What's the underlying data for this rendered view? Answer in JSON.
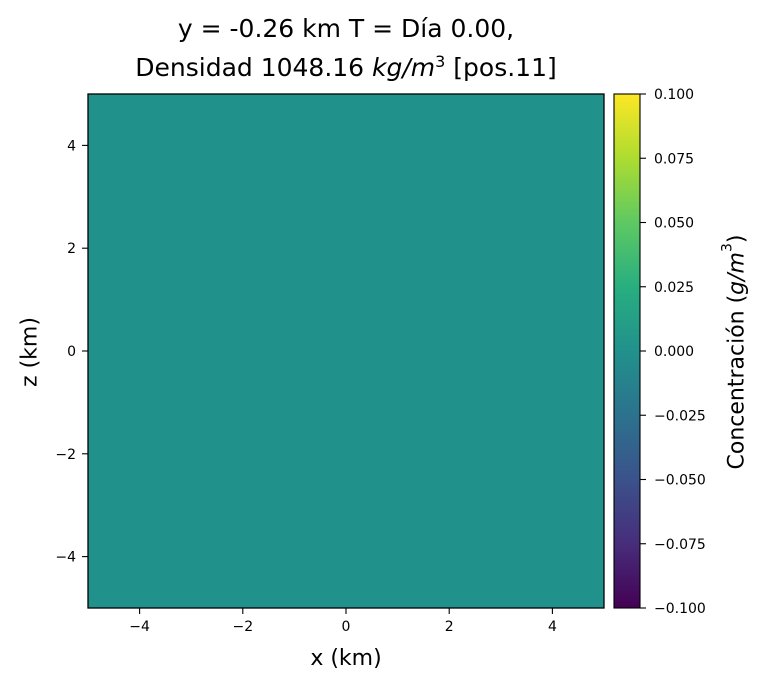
{
  "title_line1": "y = -0.26 km  T = Día 0.00,",
  "title_line2_pre": "Densidad 1048.16 ",
  "title_line2_unit_base": "kg/m",
  "title_line2_unit_exp": "3",
  "title_line2_post": " [pos.11]",
  "colorbar_label_pre": "Concentración (",
  "colorbar_label_unit_base": "g/m",
  "colorbar_label_unit_exp": "3",
  "colorbar_label_post": ")",
  "chart_data": {
    "type": "heatmap",
    "xlabel": "x (km)",
    "ylabel": "z (km)",
    "xlim": [
      -5,
      5
    ],
    "ylim": [
      -5,
      5
    ],
    "x_ticks": [
      -4,
      -2,
      0,
      2,
      4
    ],
    "y_ticks": [
      -4,
      -2,
      0,
      2,
      4
    ],
    "x_tick_labels": [
      "−4",
      "−2",
      "0",
      "2",
      "4"
    ],
    "y_tick_labels": [
      "−4",
      "−2",
      "0",
      "2",
      "4"
    ],
    "field_value": 0.0,
    "fill_color": "#21918c",
    "colormap": "viridis",
    "colorbar_limits": [
      -0.1,
      0.1
    ],
    "colorbar_ticks": [
      0.1,
      0.075,
      0.05,
      0.025,
      0.0,
      -0.025,
      -0.05,
      -0.075,
      -0.1
    ],
    "colorbar_tick_labels": [
      "0.100",
      "0.075",
      "0.050",
      "0.025",
      "0.000",
      "−0.025",
      "−0.050",
      "−0.075",
      "−0.100"
    ]
  }
}
